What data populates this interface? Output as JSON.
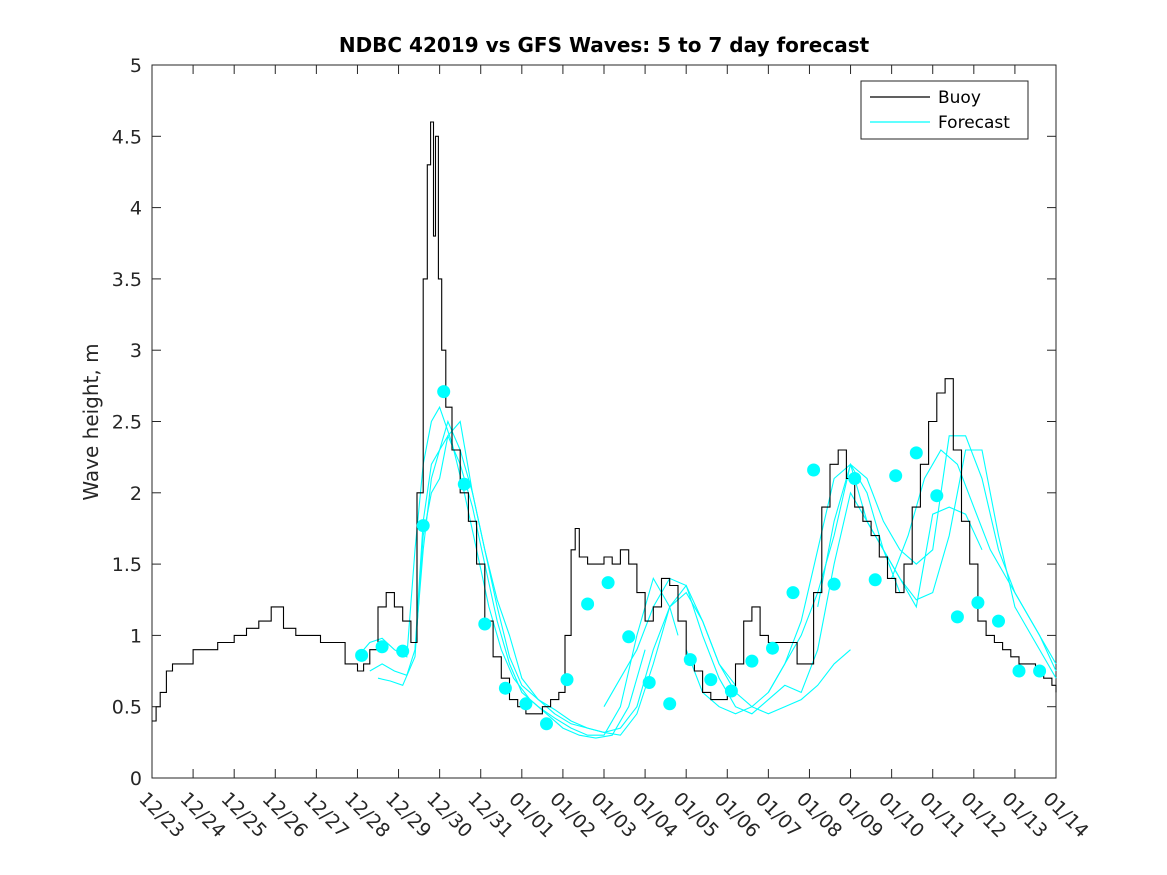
{
  "chart_data": {
    "type": "line",
    "title": "NDBC 42019 vs GFS Waves: 5 to 7 day forecast",
    "xlabel": "",
    "ylabel": "Wave height, m",
    "xlim": [
      0,
      22
    ],
    "ylim": [
      0,
      5
    ],
    "grid": false,
    "legend_position": "top-right",
    "x_tick_labels": [
      "12/23",
      "12/24",
      "12/25",
      "12/26",
      "12/27",
      "12/28",
      "12/29",
      "12/30",
      "12/31",
      "01/01",
      "01/02",
      "01/03",
      "01/04",
      "01/05",
      "01/06",
      "01/07",
      "01/08",
      "01/09",
      "01/10",
      "01/11",
      "01/12",
      "01/13",
      "01/14"
    ],
    "y_ticks": [
      0,
      0.5,
      1,
      1.5,
      2,
      2.5,
      3,
      3.5,
      4,
      4.5,
      5
    ],
    "y_tick_labels": [
      "0",
      "0.5",
      "1",
      "1.5",
      "2",
      "2.5",
      "3",
      "3.5",
      "4",
      "4.5",
      "5"
    ],
    "colors": {
      "buoy": "#000000",
      "forecast": "#00ffff",
      "axes": "#262626"
    },
    "legend": [
      {
        "name": "Buoy",
        "color": "#000000"
      },
      {
        "name": "Forecast",
        "color": "#00ffff"
      }
    ],
    "buoy": {
      "name": "Buoy",
      "x": [
        0.0,
        0.1,
        0.2,
        0.35,
        0.5,
        0.7,
        1.0,
        1.3,
        1.6,
        2.0,
        2.3,
        2.6,
        2.9,
        3.2,
        3.5,
        3.8,
        4.1,
        4.4,
        4.7,
        5.0,
        5.15,
        5.3,
        5.5,
        5.7,
        5.9,
        6.1,
        6.3,
        6.45,
        6.6,
        6.7,
        6.78,
        6.85,
        6.9,
        6.97,
        7.05,
        7.15,
        7.3,
        7.5,
        7.7,
        7.9,
        8.1,
        8.3,
        8.5,
        8.7,
        8.9,
        9.1,
        9.3,
        9.5,
        9.7,
        9.9,
        10.05,
        10.2,
        10.3,
        10.4,
        10.6,
        10.8,
        11.0,
        11.2,
        11.4,
        11.6,
        11.8,
        12.0,
        12.2,
        12.4,
        12.6,
        12.8,
        13.0,
        13.2,
        13.4,
        13.6,
        13.8,
        14.0,
        14.2,
        14.4,
        14.6,
        14.8,
        15.0,
        15.2,
        15.5,
        15.7,
        15.9,
        16.1,
        16.3,
        16.5,
        16.7,
        16.9,
        17.1,
        17.3,
        17.5,
        17.7,
        17.9,
        18.1,
        18.3,
        18.5,
        18.7,
        18.9,
        19.1,
        19.3,
        19.5,
        19.7,
        19.9,
        20.1,
        20.3,
        20.5,
        20.7,
        20.9,
        21.1,
        21.3,
        21.5,
        21.7,
        21.9,
        22.0
      ],
      "y": [
        0.4,
        0.5,
        0.6,
        0.75,
        0.8,
        0.8,
        0.9,
        0.9,
        0.95,
        1.0,
        1.05,
        1.1,
        1.2,
        1.05,
        1.0,
        1.0,
        0.95,
        0.95,
        0.8,
        0.75,
        0.8,
        0.9,
        1.2,
        1.3,
        1.2,
        1.1,
        0.95,
        2.0,
        3.5,
        4.3,
        4.6,
        3.8,
        4.5,
        3.5,
        3.0,
        2.6,
        2.3,
        2.0,
        1.8,
        1.5,
        1.1,
        0.85,
        0.7,
        0.55,
        0.5,
        0.45,
        0.45,
        0.5,
        0.55,
        0.6,
        1.0,
        1.6,
        1.75,
        1.55,
        1.5,
        1.5,
        1.55,
        1.5,
        1.6,
        1.5,
        1.3,
        1.1,
        1.2,
        1.4,
        1.35,
        1.1,
        0.8,
        0.75,
        0.6,
        0.55,
        0.55,
        0.6,
        0.8,
        1.1,
        1.2,
        1.0,
        0.95,
        0.95,
        0.95,
        0.8,
        0.8,
        1.3,
        1.9,
        2.2,
        2.3,
        2.1,
        1.9,
        1.8,
        1.7,
        1.55,
        1.4,
        1.3,
        1.5,
        1.9,
        2.2,
        2.5,
        2.7,
        2.8,
        2.3,
        1.8,
        1.5,
        1.1,
        1.0,
        0.95,
        0.9,
        0.85,
        0.8,
        0.8,
        0.75,
        0.7,
        0.65,
        0.6
      ]
    },
    "forecast_series": [
      {
        "name": "Forecast",
        "x": [
          5.0,
          5.3,
          5.6,
          5.9,
          6.2,
          6.4,
          6.6,
          6.8,
          7.0,
          7.3,
          7.6,
          7.9,
          8.2,
          8.5,
          8.8,
          9.2,
          9.6,
          10.0,
          10.4,
          10.8,
          11.2,
          11.6,
          12.0
        ],
        "y": [
          0.85,
          0.95,
          0.98,
          0.9,
          0.85,
          1.6,
          2.2,
          2.5,
          2.6,
          2.35,
          2.0,
          1.6,
          1.2,
          0.9,
          0.7,
          0.55,
          0.45,
          0.35,
          0.3,
          0.28,
          0.3,
          0.5,
          0.9
        ]
      },
      {
        "name": "Forecast",
        "x": [
          5.3,
          5.6,
          5.9,
          6.2,
          6.4,
          6.6,
          6.8,
          7.0,
          7.2,
          7.5,
          7.8,
          8.1,
          8.4,
          8.7,
          9.0,
          9.4,
          9.8,
          10.2,
          10.6,
          11.0,
          11.4,
          11.8,
          12.2,
          12.6,
          12.8
        ],
        "y": [
          0.75,
          0.8,
          0.75,
          0.72,
          0.9,
          1.6,
          2.1,
          2.3,
          2.4,
          2.2,
          1.9,
          1.5,
          1.1,
          0.8,
          0.6,
          0.5,
          0.42,
          0.35,
          0.3,
          0.3,
          0.5,
          1.0,
          1.4,
          1.2,
          1.0
        ]
      },
      {
        "name": "Forecast",
        "x": [
          5.5,
          5.8,
          6.1,
          6.4,
          6.6,
          6.8,
          7.0,
          7.2,
          7.5,
          7.8,
          8.1,
          8.4,
          8.7,
          9.0,
          9.4,
          9.8,
          10.2,
          10.6,
          11.0,
          11.4,
          11.8,
          12.2,
          12.6,
          13.0,
          13.4,
          13.8,
          14.2
        ],
        "y": [
          0.7,
          0.68,
          0.65,
          0.85,
          1.7,
          2.0,
          2.1,
          2.4,
          2.5,
          2.0,
          1.6,
          1.2,
          0.85,
          0.65,
          0.55,
          0.45,
          0.38,
          0.35,
          0.32,
          0.3,
          0.45,
          0.8,
          1.2,
          1.35,
          1.1,
          0.8,
          0.65
        ]
      },
      {
        "name": "Forecast",
        "x": [
          6.4,
          6.6,
          6.8,
          7.0,
          7.2,
          7.5,
          7.8,
          8.1,
          8.4,
          8.7,
          9.0,
          9.4,
          9.8,
          10.2,
          10.6,
          11.0,
          11.4,
          11.8,
          12.2,
          12.6,
          13.0,
          13.4,
          13.8,
          14.2,
          14.6,
          15.0,
          15.4,
          15.8,
          16.2,
          16.6,
          17.0
        ],
        "y": [
          0.9,
          1.8,
          2.2,
          2.3,
          2.5,
          2.3,
          2.0,
          1.6,
          1.25,
          1.0,
          0.7,
          0.55,
          0.48,
          0.4,
          0.35,
          0.32,
          0.35,
          0.5,
          0.9,
          1.2,
          1.3,
          1.1,
          0.8,
          0.6,
          0.5,
          0.45,
          0.5,
          0.55,
          0.65,
          0.8,
          0.9
        ]
      },
      {
        "name": "Forecast",
        "x": [
          11.0,
          11.4,
          11.8,
          12.2,
          12.6,
          13.0,
          13.4,
          13.8,
          14.2,
          14.6,
          15.0,
          15.4,
          15.8,
          16.2,
          16.6,
          17.0,
          17.4,
          17.8,
          18.2
        ],
        "y": [
          0.5,
          0.7,
          0.9,
          1.2,
          1.4,
          1.35,
          1.0,
          0.7,
          0.5,
          0.45,
          0.55,
          0.65,
          0.6,
          0.9,
          1.5,
          2.0,
          1.8,
          1.6,
          1.3
        ]
      },
      {
        "name": "Forecast",
        "x": [
          13.0,
          13.4,
          13.8,
          14.2,
          14.6,
          15.0,
          15.4,
          15.8,
          16.2,
          16.6,
          17.0,
          17.4,
          17.8,
          18.2,
          18.6,
          19.0,
          19.4,
          19.8,
          20.2
        ],
        "y": [
          0.9,
          0.6,
          0.5,
          0.45,
          0.5,
          0.6,
          0.8,
          1.0,
          1.3,
          1.7,
          2.2,
          2.0,
          1.6,
          1.4,
          1.2,
          1.85,
          1.9,
          1.85,
          1.6
        ]
      },
      {
        "name": "Forecast",
        "x": [
          15.0,
          15.4,
          15.8,
          16.2,
          16.6,
          17.0,
          17.4,
          17.8,
          18.2,
          18.6,
          19.0,
          19.4,
          19.8,
          20.2,
          20.6,
          21.0,
          21.4,
          21.8,
          22.0
        ],
        "y": [
          0.6,
          0.8,
          1.1,
          1.6,
          2.1,
          2.2,
          1.8,
          1.6,
          1.4,
          1.25,
          1.3,
          1.7,
          2.3,
          2.3,
          1.7,
          1.2,
          1.0,
          0.8,
          0.7
        ]
      },
      {
        "name": "Forecast",
        "x": [
          16.2,
          16.6,
          17.0,
          17.4,
          17.8,
          18.2,
          18.6,
          19.0,
          19.4,
          19.8,
          20.2,
          20.6,
          21.0,
          21.4,
          21.8,
          22.0
        ],
        "y": [
          1.2,
          1.8,
          2.2,
          2.1,
          1.8,
          1.6,
          1.5,
          1.6,
          2.4,
          2.4,
          2.1,
          1.6,
          1.3,
          1.1,
          0.9,
          0.8
        ]
      },
      {
        "name": "Forecast",
        "x": [
          18.0,
          18.4,
          18.8,
          19.2,
          19.6,
          20.0,
          20.4,
          20.8,
          21.2,
          21.6,
          22.0
        ],
        "y": [
          1.4,
          1.7,
          2.1,
          2.3,
          2.2,
          1.9,
          1.6,
          1.4,
          1.2,
          1.0,
          0.75
        ]
      }
    ],
    "forecast_markers": {
      "x": [
        5.1,
        5.6,
        6.1,
        6.6,
        7.1,
        7.6,
        8.1,
        8.6,
        9.1,
        9.6,
        10.1,
        10.6,
        11.1,
        11.6,
        12.1,
        12.6,
        13.1,
        13.6,
        14.1,
        14.6,
        15.1,
        15.6,
        16.1,
        16.6,
        17.1,
        17.6,
        18.1,
        18.6,
        19.1,
        19.6,
        20.1,
        20.6,
        21.1,
        21.6
      ],
      "y": [
        0.86,
        0.92,
        0.89,
        1.77,
        2.71,
        2.06,
        1.08,
        0.63,
        0.52,
        0.38,
        0.69,
        1.22,
        1.37,
        0.99,
        0.67,
        0.52,
        0.83,
        0.69,
        0.61,
        0.82,
        0.91,
        1.3,
        2.16,
        1.36,
        2.1,
        1.39,
        2.12,
        2.28,
        1.98,
        1.13,
        1.23,
        1.1,
        0.75,
        0.75
      ]
    }
  }
}
